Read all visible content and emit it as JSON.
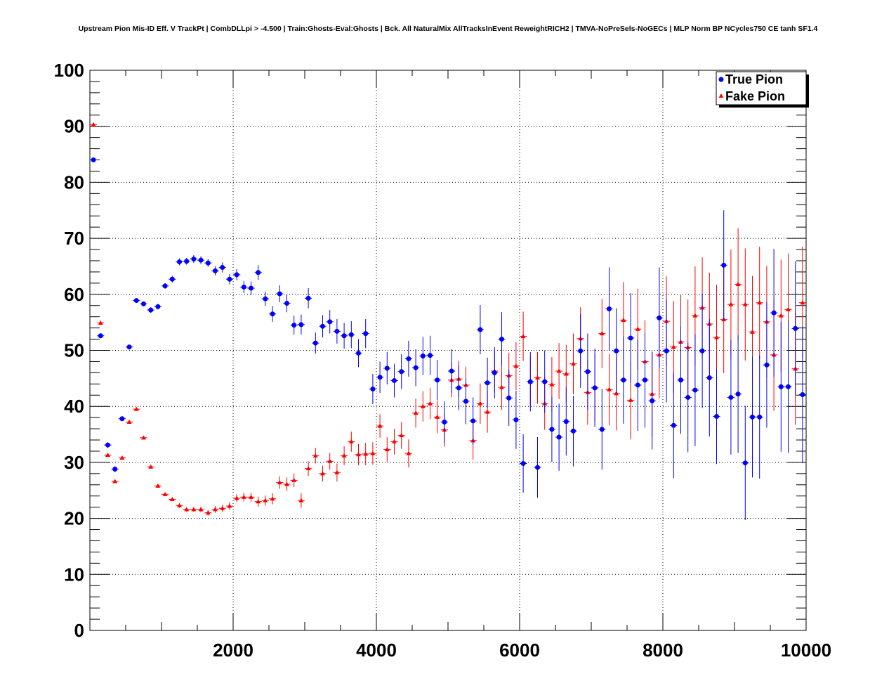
{
  "chart_data": {
    "type": "scatter",
    "title": "Upstream Pion Mis-ID Eff. V TrackPt | CombDLLpi > -4.500 | Train:Ghosts-Eval:Ghosts | Bck. All NaturalMix AllTracksInEvent ReweightRICH2 | TMVA-NoPreSels-NoGECs | MLP Norm BP NCycles750 CE tanh SF1.4",
    "xlabel": "",
    "ylabel": "",
    "xlim": [
      0,
      10000
    ],
    "ylim": [
      0,
      100
    ],
    "x_ticks": [
      "2000",
      "4000",
      "6000",
      "8000",
      "10000"
    ],
    "y_ticks": [
      "0",
      "10",
      "20",
      "30",
      "40",
      "50",
      "60",
      "70",
      "80",
      "90",
      "100"
    ],
    "grid": true,
    "legend_position": "top-right",
    "x": [
      50,
      150,
      250,
      350,
      450,
      550,
      650,
      750,
      850,
      950,
      1050,
      1150,
      1250,
      1350,
      1450,
      1550,
      1650,
      1750,
      1850,
      1950,
      2050,
      2150,
      2250,
      2350,
      2450,
      2550,
      2650,
      2750,
      2850,
      2950,
      3050,
      3150,
      3250,
      3350,
      3450,
      3550,
      3650,
      3750,
      3850,
      3950,
      4050,
      4150,
      4250,
      4350,
      4450,
      4550,
      4650,
      4750,
      4850,
      4950,
      5050,
      5150,
      5250,
      5350,
      5450,
      5550,
      5650,
      5750,
      5850,
      5950,
      6050,
      6150,
      6250,
      6350,
      6450,
      6550,
      6650,
      6750,
      6850,
      6950,
      7050,
      7150,
      7250,
      7350,
      7450,
      7550,
      7650,
      7750,
      7850,
      7950,
      8050,
      8150,
      8250,
      8350,
      8450,
      8550,
      8650,
      8750,
      8850,
      8950,
      9050,
      9150,
      9250,
      9350,
      9450,
      9550,
      9650,
      9750,
      9850,
      9950
    ],
    "series": [
      {
        "name": "True Pion",
        "color": "#0000ff",
        "marker": "circle",
        "values": [
          84.0,
          52.6,
          33.1,
          28.8,
          37.8,
          50.6,
          58.9,
          58.3,
          57.2,
          57.8,
          61.5,
          62.7,
          65.8,
          65.9,
          66.3,
          66.1,
          65.6,
          64.2,
          64.8,
          62.7,
          63.5,
          61.3,
          61.1,
          63.9,
          59.2,
          56.5,
          60.1,
          58.4,
          54.5,
          54.6,
          59.3,
          51.3,
          54.3,
          55.1,
          53.4,
          52.6,
          52.8,
          49.5,
          53.0,
          43.1,
          45.2,
          46.8,
          44.6,
          46.2,
          48.5,
          46.9,
          49.0,
          49.1,
          44.7,
          37.2,
          46.3,
          43.3,
          40.9,
          37.4,
          53.7,
          44.2,
          46.0,
          52.0,
          41.5,
          37.6,
          29.8,
          44.4,
          29.1,
          44.4,
          35.9,
          34.5,
          37.3,
          35.6,
          49.9,
          46.2,
          43.3,
          35.9,
          57.4,
          49.9,
          44.7,
          52.2,
          43.8,
          44.7,
          41.0,
          55.8,
          49.9,
          36.6,
          44.7,
          41.6,
          42.9,
          49.9,
          45.1,
          38.2,
          65.2,
          41.6,
          42.2,
          29.9,
          38.1,
          38.1,
          47.4,
          56.7,
          43.5,
          43.5,
          53.9,
          42.1
        ],
        "errors": [
          0.3,
          0.4,
          0.5,
          0.5,
          0.4,
          0.4,
          0.4,
          0.4,
          0.5,
          0.5,
          0.5,
          0.6,
          0.6,
          0.6,
          0.7,
          0.7,
          0.7,
          0.8,
          0.9,
          0.9,
          1.0,
          1.1,
          1.2,
          1.3,
          1.3,
          1.4,
          1.5,
          1.6,
          1.7,
          1.8,
          1.8,
          1.9,
          2.0,
          2.1,
          2.2,
          2.3,
          2.4,
          2.5,
          2.6,
          2.7,
          2.8,
          2.9,
          3.0,
          3.1,
          3.2,
          3.3,
          3.4,
          3.5,
          3.6,
          3.7,
          3.9,
          4.0,
          4.1,
          4.2,
          4.4,
          4.5,
          4.6,
          4.8,
          5.0,
          5.2,
          5.2,
          5.3,
          5.4,
          5.6,
          5.8,
          6.0,
          6.1,
          6.3,
          6.6,
          6.8,
          7.0,
          7.2,
          7.4,
          7.6,
          7.8,
          8.0,
          8.2,
          8.5,
          8.7,
          9.0,
          9.2,
          9.4,
          9.6,
          9.8,
          10.0,
          10.2,
          10.5,
          8.5,
          9.8,
          10.2,
          10.5,
          10.2,
          10.8,
          11.0,
          11.2,
          11.4,
          11.6,
          11.8,
          12.0,
          12.2
        ]
      },
      {
        "name": "Fake Pion",
        "color": "#ff0000",
        "marker": "triangle",
        "values": [
          90.3,
          54.9,
          31.3,
          26.6,
          30.8,
          37.2,
          39.5,
          34.4,
          29.2,
          25.8,
          24.3,
          23.4,
          22.3,
          21.6,
          21.6,
          21.6,
          21.0,
          21.6,
          21.8,
          22.2,
          23.6,
          23.8,
          23.8,
          23.0,
          23.2,
          23.5,
          26.4,
          26.1,
          26.8,
          23.2,
          28.9,
          31.2,
          28.0,
          30.2,
          28.2,
          31.2,
          33.7,
          31.4,
          31.5,
          31.6,
          36.5,
          32.3,
          33.7,
          34.8,
          31.6,
          38.8,
          40.0,
          40.5,
          38.1,
          35.8,
          44.7,
          44.9,
          43.8,
          33.9,
          40.5,
          39.0,
          46.3,
          43.4,
          45.5,
          47.2,
          52.5,
          44.4,
          45.1,
          40.5,
          43.9,
          46.3,
          45.8,
          47.6,
          52.1,
          42.5,
          43.3,
          53.0,
          43.0,
          42.3,
          55.4,
          41.1,
          53.8,
          48.0,
          42.2,
          49.2,
          55.2,
          50.6,
          51.5,
          50.5,
          56.2,
          57.6,
          54.7,
          52.3,
          55.5,
          58.2,
          61.8,
          58.2,
          53.3,
          58.5,
          55.1,
          49.2,
          56.2,
          57.3,
          46.7,
          58.5
        ],
        "errors": [
          0.3,
          0.4,
          0.3,
          0.3,
          0.3,
          0.3,
          0.3,
          0.3,
          0.3,
          0.3,
          0.3,
          0.3,
          0.4,
          0.4,
          0.4,
          0.5,
          0.5,
          0.6,
          0.6,
          0.7,
          0.7,
          0.8,
          0.8,
          0.9,
          0.9,
          1.0,
          1.1,
          1.2,
          1.2,
          1.3,
          1.3,
          1.4,
          1.4,
          1.5,
          1.6,
          1.7,
          1.8,
          1.9,
          2.0,
          2.0,
          2.1,
          2.2,
          2.3,
          2.4,
          2.5,
          2.6,
          2.7,
          2.8,
          2.9,
          3.0,
          3.1,
          3.2,
          3.3,
          3.4,
          3.6,
          3.7,
          3.8,
          4.0,
          4.1,
          4.3,
          4.4,
          4.5,
          4.6,
          4.7,
          4.9,
          5.0,
          5.2,
          5.4,
          5.6,
          5.8,
          6.0,
          6.2,
          6.4,
          6.6,
          6.8,
          7.0,
          7.2,
          7.4,
          7.6,
          7.8,
          8.0,
          8.2,
          8.4,
          8.6,
          8.8,
          9.0,
          9.2,
          9.4,
          9.6,
          9.8,
          10.0,
          10.0,
          10.0,
          10.0,
          10.0,
          10.0,
          10.0,
          10.0,
          10.0,
          10.0
        ]
      }
    ]
  }
}
